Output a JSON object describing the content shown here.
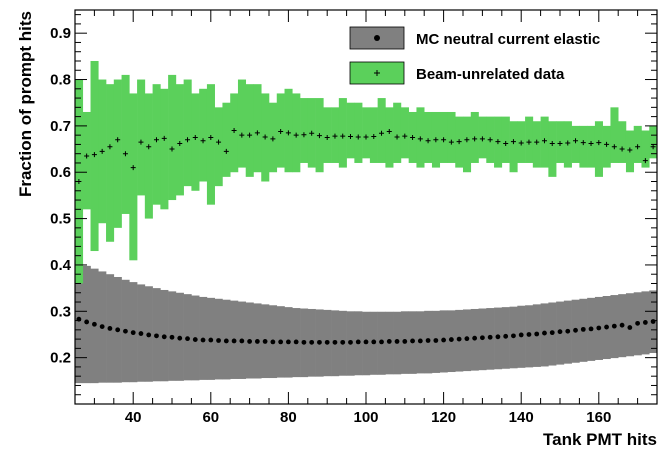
{
  "chart_data": {
    "type": "scatter",
    "xlabel": "Tank PMT hits",
    "ylabel": "Fraction of prompt hits",
    "xlim": [
      25,
      175
    ],
    "ylim": [
      0.1,
      0.95
    ],
    "xticks": [
      40,
      60,
      80,
      100,
      120,
      140,
      160
    ],
    "yticks": [
      0.2,
      0.3,
      0.4,
      0.5,
      0.6,
      0.7,
      0.8,
      0.9
    ],
    "legend_position": "top-right",
    "series": [
      {
        "name": "MC neutral current elastic",
        "color": "#808080",
        "marker": "dot",
        "x": [
          26,
          28,
          30,
          32,
          34,
          36,
          38,
          40,
          42,
          44,
          46,
          48,
          50,
          52,
          54,
          56,
          58,
          60,
          62,
          64,
          66,
          68,
          70,
          72,
          74,
          76,
          78,
          80,
          82,
          84,
          86,
          88,
          90,
          92,
          94,
          96,
          98,
          100,
          102,
          104,
          106,
          108,
          110,
          112,
          114,
          116,
          118,
          120,
          122,
          124,
          126,
          128,
          130,
          132,
          134,
          136,
          138,
          140,
          142,
          144,
          146,
          148,
          150,
          152,
          154,
          156,
          158,
          160,
          162,
          164,
          166,
          168,
          170,
          172,
          174
        ],
        "y": [
          0.283,
          0.277,
          0.272,
          0.267,
          0.263,
          0.26,
          0.257,
          0.254,
          0.252,
          0.249,
          0.247,
          0.245,
          0.244,
          0.242,
          0.241,
          0.239,
          0.238,
          0.238,
          0.237,
          0.236,
          0.236,
          0.236,
          0.235,
          0.235,
          0.235,
          0.234,
          0.234,
          0.234,
          0.234,
          0.233,
          0.233,
          0.233,
          0.233,
          0.233,
          0.233,
          0.233,
          0.234,
          0.234,
          0.234,
          0.234,
          0.235,
          0.235,
          0.235,
          0.236,
          0.236,
          0.237,
          0.237,
          0.238,
          0.239,
          0.24,
          0.241,
          0.242,
          0.243,
          0.244,
          0.245,
          0.246,
          0.247,
          0.249,
          0.25,
          0.251,
          0.253,
          0.254,
          0.256,
          0.257,
          0.259,
          0.261,
          0.262,
          0.264,
          0.266,
          0.268,
          0.27,
          0.265,
          0.274,
          0.276,
          0.278
        ],
        "y_low": [
          0.145,
          0.145,
          0.145,
          0.146,
          0.146,
          0.146,
          0.147,
          0.147,
          0.148,
          0.148,
          0.149,
          0.149,
          0.15,
          0.15,
          0.151,
          0.151,
          0.152,
          0.152,
          0.153,
          0.153,
          0.154,
          0.154,
          0.155,
          0.155,
          0.156,
          0.156,
          0.157,
          0.157,
          0.158,
          0.158,
          0.159,
          0.159,
          0.16,
          0.16,
          0.161,
          0.161,
          0.162,
          0.162,
          0.163,
          0.163,
          0.164,
          0.164,
          0.165,
          0.165,
          0.166,
          0.166,
          0.167,
          0.168,
          0.169,
          0.17,
          0.171,
          0.172,
          0.173,
          0.174,
          0.175,
          0.176,
          0.177,
          0.178,
          0.179,
          0.18,
          0.181,
          0.183,
          0.185,
          0.187,
          0.189,
          0.191,
          0.193,
          0.195,
          0.197,
          0.199,
          0.201,
          0.203,
          0.205,
          0.207,
          0.21
        ],
        "y_high": [
          0.405,
          0.398,
          0.392,
          0.386,
          0.38,
          0.374,
          0.368,
          0.363,
          0.358,
          0.354,
          0.35,
          0.346,
          0.343,
          0.34,
          0.337,
          0.334,
          0.331,
          0.329,
          0.327,
          0.325,
          0.323,
          0.321,
          0.319,
          0.317,
          0.315,
          0.313,
          0.311,
          0.309,
          0.307,
          0.306,
          0.305,
          0.304,
          0.303,
          0.302,
          0.301,
          0.3,
          0.3,
          0.299,
          0.299,
          0.299,
          0.299,
          0.299,
          0.3,
          0.3,
          0.3,
          0.301,
          0.301,
          0.302,
          0.302,
          0.303,
          0.304,
          0.305,
          0.306,
          0.307,
          0.308,
          0.309,
          0.31,
          0.312,
          0.313,
          0.315,
          0.317,
          0.319,
          0.321,
          0.323,
          0.325,
          0.327,
          0.329,
          0.331,
          0.333,
          0.335,
          0.337,
          0.339,
          0.341,
          0.343,
          0.345
        ]
      },
      {
        "name": "Beam-unrelated data",
        "color": "#5bd05b",
        "marker": "plus",
        "x": [
          26,
          28,
          30,
          32,
          34,
          36,
          38,
          40,
          42,
          44,
          46,
          48,
          50,
          52,
          54,
          56,
          58,
          60,
          62,
          64,
          66,
          68,
          70,
          72,
          74,
          76,
          78,
          80,
          82,
          84,
          86,
          88,
          90,
          92,
          94,
          96,
          98,
          100,
          102,
          104,
          106,
          108,
          110,
          112,
          114,
          116,
          118,
          120,
          122,
          124,
          126,
          128,
          130,
          132,
          134,
          136,
          138,
          140,
          142,
          144,
          146,
          148,
          150,
          152,
          154,
          156,
          158,
          160,
          162,
          164,
          166,
          168,
          170,
          172,
          174
        ],
        "y": [
          0.58,
          0.635,
          0.638,
          0.645,
          0.655,
          0.67,
          0.64,
          0.61,
          0.665,
          0.655,
          0.67,
          0.673,
          0.65,
          0.662,
          0.67,
          0.675,
          0.668,
          0.675,
          0.665,
          0.645,
          0.69,
          0.68,
          0.68,
          0.685,
          0.676,
          0.672,
          0.688,
          0.685,
          0.68,
          0.681,
          0.684,
          0.679,
          0.675,
          0.678,
          0.678,
          0.677,
          0.676,
          0.676,
          0.677,
          0.684,
          0.688,
          0.676,
          0.678,
          0.675,
          0.672,
          0.668,
          0.67,
          0.67,
          0.665,
          0.666,
          0.67,
          0.672,
          0.672,
          0.67,
          0.666,
          0.662,
          0.666,
          0.663,
          0.665,
          0.665,
          0.668,
          0.662,
          0.662,
          0.663,
          0.668,
          0.664,
          0.662,
          0.664,
          0.66,
          0.655,
          0.65,
          0.648,
          0.655,
          0.625,
          0.655
        ],
        "y_low": [
          0.36,
          0.52,
          0.43,
          0.49,
          0.45,
          0.48,
          0.51,
          0.41,
          0.55,
          0.5,
          0.53,
          0.52,
          0.54,
          0.55,
          0.57,
          0.56,
          0.58,
          0.53,
          0.57,
          0.59,
          0.6,
          0.61,
          0.59,
          0.6,
          0.58,
          0.6,
          0.61,
          0.6,
          0.6,
          0.62,
          0.61,
          0.6,
          0.62,
          0.62,
          0.61,
          0.63,
          0.62,
          0.63,
          0.62,
          0.62,
          0.61,
          0.62,
          0.63,
          0.62,
          0.61,
          0.62,
          0.61,
          0.62,
          0.62,
          0.61,
          0.6,
          0.62,
          0.63,
          0.62,
          0.61,
          0.62,
          0.6,
          0.62,
          0.62,
          0.61,
          0.61,
          0.59,
          0.62,
          0.61,
          0.62,
          0.61,
          0.61,
          0.59,
          0.61,
          0.62,
          0.62,
          0.6,
          0.62,
          0.61,
          0.63
        ],
        "y_high": [
          0.8,
          0.73,
          0.84,
          0.8,
          0.79,
          0.8,
          0.81,
          0.77,
          0.8,
          0.77,
          0.79,
          0.78,
          0.81,
          0.79,
          0.8,
          0.77,
          0.78,
          0.79,
          0.74,
          0.75,
          0.77,
          0.8,
          0.79,
          0.79,
          0.77,
          0.75,
          0.77,
          0.78,
          0.77,
          0.76,
          0.76,
          0.76,
          0.74,
          0.74,
          0.76,
          0.75,
          0.75,
          0.74,
          0.74,
          0.76,
          0.74,
          0.75,
          0.74,
          0.73,
          0.74,
          0.73,
          0.73,
          0.73,
          0.73,
          0.72,
          0.72,
          0.73,
          0.72,
          0.72,
          0.72,
          0.72,
          0.71,
          0.71,
          0.72,
          0.71,
          0.72,
          0.71,
          0.71,
          0.71,
          0.7,
          0.7,
          0.7,
          0.71,
          0.7,
          0.74,
          0.71,
          0.69,
          0.7,
          0.69,
          0.7
        ]
      }
    ]
  }
}
